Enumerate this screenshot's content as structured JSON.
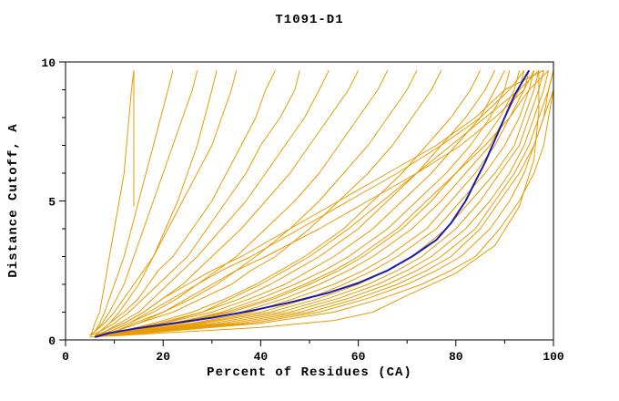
{
  "title": "T1091-D1",
  "chart_data": {
    "type": "line",
    "title": "T1091-D1",
    "xlabel": "Percent of Residues (CA)",
    "ylabel": "Distance Cutoff, A",
    "xlim": [
      0,
      100
    ],
    "ylim": [
      0,
      10
    ],
    "x_major_ticks": [
      0,
      20,
      40,
      60,
      80,
      100
    ],
    "x_minor_ticks": [
      10,
      30,
      50,
      70,
      90
    ],
    "y_major_ticks": [
      0,
      5,
      10
    ],
    "y_minor_ticks": [
      1,
      2,
      3,
      4,
      6,
      7,
      8,
      9
    ],
    "grid": "off",
    "legend": "none",
    "colors": {
      "model_line": "#e89b00",
      "highlight_line": "#1a1aae",
      "axis": "#000000",
      "background": "#ffffff"
    },
    "y_grid": [
      0.15,
      0.3,
      0.6,
      1.0,
      1.5,
      2.0,
      2.5,
      3.0,
      4.0,
      5.0,
      6.0,
      7.0,
      8.0,
      9.0,
      9.7
    ],
    "series": [
      {
        "name": "model-01",
        "role": "model",
        "x": [
          5,
          5.5,
          6,
          7,
          7.5,
          8,
          8.5,
          9,
          10,
          11,
          12,
          12.5,
          13,
          13.5,
          14
        ]
      },
      {
        "name": "model-02",
        "role": "model",
        "x": [
          5,
          6,
          7,
          8,
          9,
          10,
          11,
          12,
          13.5,
          15,
          16.5,
          18,
          19.5,
          21,
          22
        ]
      },
      {
        "name": "model-03",
        "role": "model",
        "x": [
          5,
          6,
          7.5,
          9,
          10.5,
          12,
          13,
          14,
          16,
          18,
          20,
          22,
          24,
          26,
          27
        ]
      },
      {
        "name": "model-04",
        "role": "model",
        "x": [
          6,
          7,
          9,
          11,
          13,
          15,
          16.5,
          18,
          20.5,
          23,
          25,
          27,
          28.5,
          30,
          31
        ]
      },
      {
        "name": "model-05",
        "role": "model",
        "points": [
          [
            14,
            4.8
          ],
          [
            14,
            9.7
          ]
        ]
      },
      {
        "name": "model-06",
        "role": "model",
        "x": [
          5,
          6,
          8,
          10,
          12,
          14,
          16,
          18,
          21,
          24,
          27,
          30,
          32,
          34,
          35
        ]
      },
      {
        "name": "model-07",
        "role": "model",
        "x": [
          5,
          7,
          9,
          12,
          15,
          17,
          19,
          22,
          26,
          30,
          33,
          36,
          39,
          41,
          43
        ]
      },
      {
        "name": "model-08",
        "role": "model",
        "x": [
          6,
          7,
          10,
          13,
          16,
          19,
          22,
          25,
          29,
          33,
          37,
          40,
          44,
          47,
          48
        ]
      },
      {
        "name": "model-09",
        "role": "model",
        "x": [
          6,
          8,
          11,
          15,
          18,
          21,
          24,
          27,
          32,
          37,
          41,
          45,
          49,
          52,
          54
        ]
      },
      {
        "name": "model-10",
        "role": "model",
        "x": [
          6,
          8,
          12,
          16,
          20,
          24,
          27,
          30,
          36,
          41,
          46,
          50,
          54,
          58,
          60
        ]
      },
      {
        "name": "model-11",
        "role": "model",
        "x": [
          7,
          9,
          13,
          18,
          23,
          27,
          31,
          35,
          41,
          47,
          52,
          56,
          60,
          64,
          66
        ]
      },
      {
        "name": "model-12",
        "role": "model",
        "x": [
          7,
          10,
          14,
          20,
          26,
          31,
          35,
          39,
          46,
          52,
          57,
          62,
          66,
          70,
          72
        ]
      },
      {
        "name": "model-13",
        "role": "model",
        "x": [
          7,
          10,
          15,
          22,
          28,
          34,
          38,
          43,
          50,
          56,
          62,
          67,
          71,
          75,
          77
        ]
      },
      {
        "name": "model-14",
        "role": "model",
        "x": [
          7,
          11,
          18,
          26,
          33,
          39,
          44,
          49,
          57,
          63,
          69,
          74,
          79,
          83,
          85
        ]
      },
      {
        "name": "model-15",
        "role": "model",
        "x": [
          7,
          11,
          19,
          28,
          36,
          42,
          47,
          52,
          60,
          66,
          72,
          77,
          82,
          86,
          88
        ]
      },
      {
        "name": "model-16",
        "role": "model",
        "x": [
          8,
          12,
          20,
          30,
          38,
          45,
          50,
          55,
          63,
          69,
          75,
          80,
          85,
          88,
          90
        ]
      },
      {
        "name": "model-17",
        "role": "model",
        "x": [
          8,
          12,
          22,
          32,
          40,
          47,
          53,
          58,
          66,
          72,
          78,
          83,
          87,
          90,
          91
        ]
      },
      {
        "name": "model-18",
        "role": "model",
        "x": [
          8,
          13,
          23,
          34,
          43,
          50,
          56,
          61,
          69,
          75,
          80,
          85,
          89,
          92,
          93
        ]
      },
      {
        "name": "model-19",
        "role": "model",
        "x": [
          8,
          13,
          24,
          36,
          45,
          52,
          58,
          63,
          71,
          77,
          82,
          87,
          90,
          93,
          94
        ]
      },
      {
        "name": "model-20",
        "role": "model",
        "x": [
          9,
          14,
          26,
          38,
          47,
          55,
          61,
          66,
          74,
          79,
          84,
          88,
          91,
          94,
          95
        ]
      },
      {
        "name": "model-21",
        "role": "model",
        "x": [
          9,
          14,
          27,
          40,
          50,
          57,
          63,
          68,
          76,
          81,
          86,
          90,
          93,
          95,
          96
        ]
      },
      {
        "name": "model-22",
        "role": "model",
        "x": [
          9,
          15,
          28,
          42,
          52,
          60,
          66,
          71,
          78,
          83,
          88,
          92,
          94,
          96,
          97
        ]
      },
      {
        "name": "model-23",
        "role": "model",
        "x": [
          9,
          15,
          30,
          44,
          54,
          62,
          68,
          73,
          80,
          85,
          89,
          93,
          95,
          97,
          98
        ]
      },
      {
        "name": "model-24",
        "role": "model",
        "x": [
          10,
          16,
          32,
          46,
          56,
          64,
          70,
          75,
          82,
          87,
          91,
          94,
          96,
          98,
          99
        ]
      },
      {
        "name": "model-25",
        "role": "model",
        "x": [
          10,
          16,
          34,
          48,
          58,
          66,
          72,
          77,
          84,
          88,
          92,
          95,
          97,
          99,
          100
        ]
      },
      {
        "name": "model-26",
        "role": "model",
        "x": [
          10,
          17,
          36,
          50,
          60,
          68,
          74,
          79,
          85,
          89,
          93,
          96,
          98,
          100,
          100
        ]
      },
      {
        "name": "model-27",
        "role": "model",
        "x": [
          8,
          12,
          20,
          28,
          34,
          40,
          45,
          50,
          58,
          65,
          72,
          79,
          86,
          93,
          97
        ]
      },
      {
        "name": "model-28",
        "role": "model",
        "x": [
          7,
          10,
          15,
          20,
          25,
          30,
          35,
          41,
          52,
          62,
          72,
          81,
          88,
          94,
          96
        ]
      },
      {
        "name": "model-29",
        "role": "model",
        "x": [
          6,
          9,
          13,
          17,
          22,
          27,
          32,
          38,
          48,
          58,
          68,
          77,
          85,
          91,
          94
        ]
      },
      {
        "name": "model-30",
        "role": "model",
        "x": [
          6,
          8,
          12,
          16,
          20,
          25,
          30,
          36,
          46,
          56,
          66,
          76,
          84,
          90,
          98
        ]
      },
      {
        "name": "model-31",
        "role": "model",
        "x": [
          9,
          13,
          22,
          33,
          42,
          49,
          55,
          60,
          68,
          74,
          80,
          86,
          91,
          95,
          99
        ]
      },
      {
        "name": "model-32",
        "role": "model",
        "x": [
          10,
          18,
          38,
          52,
          62,
          70,
          76,
          81,
          87,
          91,
          94,
          96,
          98,
          99,
          100
        ]
      },
      {
        "name": "model-33",
        "role": "model",
        "x": [
          11,
          20,
          40,
          55,
          65,
          73,
          79,
          84,
          89,
          93,
          96,
          98,
          99,
          100,
          100
        ]
      },
      {
        "name": "model-34",
        "role": "model",
        "points": [
          [
            5,
            0.1
          ],
          [
            20,
            0.25
          ],
          [
            40,
            0.45
          ],
          [
            55,
            0.7
          ],
          [
            63,
            1.0
          ],
          [
            70,
            1.6
          ],
          [
            80,
            2.4
          ],
          [
            88,
            3.4
          ],
          [
            93,
            4.8
          ],
          [
            96,
            6.5
          ],
          [
            97,
            8.2
          ],
          [
            97,
            9.7
          ]
        ]
      },
      {
        "name": "highlight",
        "role": "highlight",
        "points": [
          [
            6,
            0.1
          ],
          [
            9,
            0.25
          ],
          [
            14,
            0.4
          ],
          [
            22,
            0.6
          ],
          [
            30,
            0.8
          ],
          [
            38,
            1.05
          ],
          [
            46,
            1.35
          ],
          [
            54,
            1.7
          ],
          [
            60,
            2.05
          ],
          [
            66,
            2.5
          ],
          [
            71,
            3.0
          ],
          [
            76,
            3.6
          ],
          [
            79,
            4.2
          ],
          [
            82,
            5.0
          ],
          [
            84,
            5.7
          ],
          [
            86,
            6.4
          ],
          [
            88,
            7.2
          ],
          [
            90,
            8.0
          ],
          [
            92,
            8.8
          ],
          [
            94,
            9.4
          ],
          [
            95,
            9.7
          ]
        ]
      }
    ]
  }
}
